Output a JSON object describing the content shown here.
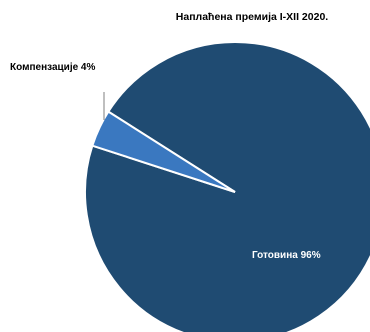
{
  "chart_data": {
    "type": "pie",
    "title": "Наплаћена премија I-XII 2020.",
    "categories": [
      "Готовина",
      "Компензације"
    ],
    "values": [
      96,
      4
    ],
    "labels": [
      "Готовина 96%",
      "Компензације 4%"
    ],
    "colors": [
      "#1f4b72",
      "#3a78c0"
    ],
    "legend": "none"
  }
}
